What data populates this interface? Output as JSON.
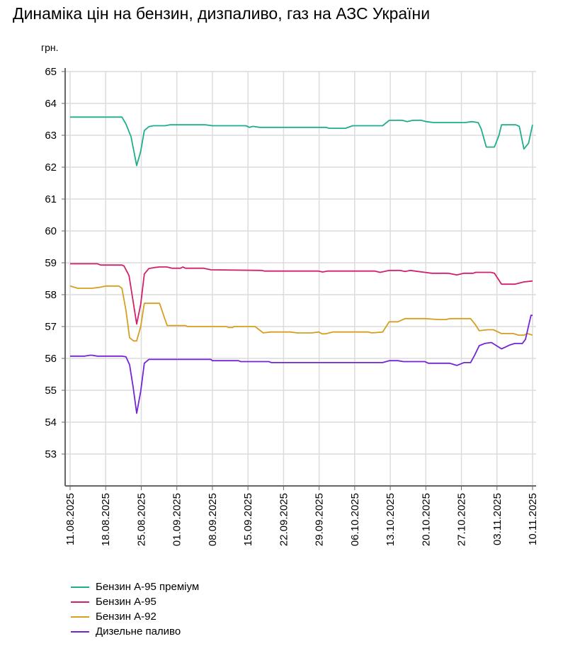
{
  "title": "Динаміка цін на бензин, дизпаливо, газ на АЗС України",
  "chart_data": {
    "type": "line",
    "title": "Динаміка цін на бензин, дизпаливо, газ на АЗС України",
    "ylabel": "грн.",
    "xlabel": "",
    "ylim": [
      52,
      65
    ],
    "yticks": [
      53,
      54,
      55,
      56,
      57,
      58,
      59,
      60,
      61,
      62,
      63,
      64,
      65
    ],
    "x_start_date": "11.08.2025",
    "x_unit": "days since 11.08.2025",
    "xlim": [
      0,
      91
    ],
    "xticks": [
      {
        "d": 0,
        "label": "11.08.2025"
      },
      {
        "d": 7,
        "label": "18.08.2025"
      },
      {
        "d": 14,
        "label": "25.08.2025"
      },
      {
        "d": 21,
        "label": "01.09.2025"
      },
      {
        "d": 28,
        "label": "08.09.2025"
      },
      {
        "d": 35,
        "label": "15.09.2025"
      },
      {
        "d": 42,
        "label": "22.09.2025"
      },
      {
        "d": 49,
        "label": "29.09.2025"
      },
      {
        "d": 56,
        "label": "06.10.2025"
      },
      {
        "d": 63,
        "label": "13.10.2025"
      },
      {
        "d": 70,
        "label": "20.10.2025"
      },
      {
        "d": 77,
        "label": "27.10.2025"
      },
      {
        "d": 84,
        "label": "03.11.2025"
      },
      {
        "d": 91,
        "label": "10.11.2025"
      }
    ],
    "grid": true,
    "legend_position": "bottom-left",
    "series": [
      {
        "name": "Бензин А-95 преміум",
        "color": "#1fae8c",
        "points": [
          [
            0,
            63.57
          ],
          [
            10.2,
            63.57
          ],
          [
            11,
            63.35
          ],
          [
            12,
            62.95
          ],
          [
            13.1,
            62.05
          ],
          [
            13.9,
            62.5
          ],
          [
            14.6,
            63.15
          ],
          [
            15.5,
            63.27
          ],
          [
            16.4,
            63.3
          ],
          [
            18.7,
            63.3
          ],
          [
            19.6,
            63.33
          ],
          [
            26.6,
            63.33
          ],
          [
            28,
            63.3
          ],
          [
            34.6,
            63.3
          ],
          [
            35.3,
            63.25
          ],
          [
            36,
            63.28
          ],
          [
            37.3,
            63.25
          ],
          [
            50.3,
            63.25
          ],
          [
            51,
            63.22
          ],
          [
            54.2,
            63.22
          ],
          [
            55.6,
            63.3
          ],
          [
            61.5,
            63.3
          ],
          [
            62.8,
            63.47
          ],
          [
            65.4,
            63.47
          ],
          [
            66.3,
            63.43
          ],
          [
            67.4,
            63.47
          ],
          [
            69.1,
            63.47
          ],
          [
            70.1,
            63.43
          ],
          [
            71.5,
            63.4
          ],
          [
            77.8,
            63.4
          ],
          [
            79,
            63.43
          ],
          [
            80.3,
            63.4
          ],
          [
            80.9,
            63.2
          ],
          [
            81.9,
            62.63
          ],
          [
            83.5,
            62.63
          ],
          [
            84.4,
            63.0
          ],
          [
            84.9,
            63.33
          ],
          [
            87.7,
            63.33
          ],
          [
            88.4,
            63.28
          ],
          [
            89.3,
            62.57
          ],
          [
            90.2,
            62.75
          ],
          [
            91,
            63.33
          ]
        ]
      },
      {
        "name": "Бензин А-95",
        "color": "#d1206c",
        "points": [
          [
            0,
            58.97
          ],
          [
            5.4,
            58.97
          ],
          [
            6,
            58.93
          ],
          [
            10.2,
            58.93
          ],
          [
            10.6,
            58.9
          ],
          [
            11.6,
            58.6
          ],
          [
            13.1,
            57.08
          ],
          [
            13.9,
            57.7
          ],
          [
            14.6,
            58.65
          ],
          [
            15.5,
            58.82
          ],
          [
            16.6,
            58.85
          ],
          [
            17.6,
            58.87
          ],
          [
            19,
            58.87
          ],
          [
            20.1,
            58.83
          ],
          [
            21.7,
            58.83
          ],
          [
            22.2,
            58.87
          ],
          [
            22.7,
            58.83
          ],
          [
            26.3,
            58.83
          ],
          [
            27.7,
            58.78
          ],
          [
            37.8,
            58.76
          ],
          [
            38.2,
            58.74
          ],
          [
            48.9,
            58.74
          ],
          [
            49.7,
            58.71
          ],
          [
            50.6,
            58.74
          ],
          [
            60,
            58.74
          ],
          [
            61,
            58.7
          ],
          [
            62.8,
            58.76
          ],
          [
            64.9,
            58.76
          ],
          [
            65.9,
            58.73
          ],
          [
            67,
            58.76
          ],
          [
            68.4,
            58.73
          ],
          [
            69.8,
            58.7
          ],
          [
            71.2,
            58.67
          ],
          [
            74.4,
            58.67
          ],
          [
            76.1,
            58.62
          ],
          [
            77.5,
            58.67
          ],
          [
            79.3,
            58.67
          ],
          [
            79.8,
            58.7
          ],
          [
            82.8,
            58.7
          ],
          [
            83.5,
            58.67
          ],
          [
            84.9,
            58.33
          ],
          [
            87.5,
            58.33
          ],
          [
            89.3,
            58.4
          ],
          [
            91,
            58.43
          ]
        ]
      },
      {
        "name": "Бензин А-92",
        "color": "#d4a020",
        "points": [
          [
            0,
            58.27
          ],
          [
            1.5,
            58.2
          ],
          [
            4.3,
            58.2
          ],
          [
            5.7,
            58.23
          ],
          [
            7.1,
            58.27
          ],
          [
            9.6,
            58.27
          ],
          [
            10.2,
            58.2
          ],
          [
            11,
            57.5
          ],
          [
            11.7,
            56.65
          ],
          [
            12.5,
            56.55
          ],
          [
            13.1,
            56.55
          ],
          [
            13.9,
            57.0
          ],
          [
            14.6,
            57.73
          ],
          [
            17.6,
            57.73
          ],
          [
            18.5,
            57.3
          ],
          [
            19.1,
            57.03
          ],
          [
            22.7,
            57.03
          ],
          [
            23.1,
            57.0
          ],
          [
            30.8,
            57.0
          ],
          [
            31.2,
            56.97
          ],
          [
            32,
            56.97
          ],
          [
            32.2,
            57.0
          ],
          [
            36.4,
            57.0
          ],
          [
            38,
            56.8
          ],
          [
            39.4,
            56.83
          ],
          [
            43.3,
            56.83
          ],
          [
            44.7,
            56.8
          ],
          [
            47.5,
            56.8
          ],
          [
            48.9,
            56.83
          ],
          [
            49.6,
            56.77
          ],
          [
            50.3,
            56.77
          ],
          [
            51.7,
            56.83
          ],
          [
            58.7,
            56.83
          ],
          [
            59.4,
            56.8
          ],
          [
            61.5,
            56.83
          ],
          [
            62.8,
            57.15
          ],
          [
            64.5,
            57.15
          ],
          [
            65.9,
            57.25
          ],
          [
            69.8,
            57.25
          ],
          [
            72.6,
            57.22
          ],
          [
            74,
            57.22
          ],
          [
            74.7,
            57.25
          ],
          [
            78.8,
            57.25
          ],
          [
            79.8,
            57.05
          ],
          [
            80.5,
            56.87
          ],
          [
            82.1,
            56.9
          ],
          [
            83.3,
            56.9
          ],
          [
            84.9,
            56.78
          ],
          [
            87.2,
            56.78
          ],
          [
            88.3,
            56.73
          ],
          [
            89.3,
            56.73
          ],
          [
            90,
            56.78
          ],
          [
            91,
            56.73
          ]
        ]
      },
      {
        "name": "Дизельне паливо",
        "color": "#7424d4",
        "points": [
          [
            0,
            56.07
          ],
          [
            2.9,
            56.07
          ],
          [
            3.9,
            56.1
          ],
          [
            4.3,
            56.1
          ],
          [
            5.4,
            56.07
          ],
          [
            10.2,
            56.07
          ],
          [
            11,
            56.05
          ],
          [
            11.7,
            55.8
          ],
          [
            12.4,
            55.1
          ],
          [
            13.1,
            54.28
          ],
          [
            13.9,
            54.97
          ],
          [
            14.6,
            55.85
          ],
          [
            15.5,
            55.97
          ],
          [
            27.7,
            55.97
          ],
          [
            28,
            55.93
          ],
          [
            33.1,
            55.93
          ],
          [
            33.6,
            55.9
          ],
          [
            39.1,
            55.9
          ],
          [
            39.6,
            55.87
          ],
          [
            61.5,
            55.87
          ],
          [
            62.8,
            55.93
          ],
          [
            64.5,
            55.93
          ],
          [
            65.6,
            55.9
          ],
          [
            69.8,
            55.9
          ],
          [
            70.5,
            55.85
          ],
          [
            74.7,
            55.85
          ],
          [
            76.1,
            55.78
          ],
          [
            77.5,
            55.87
          ],
          [
            78.8,
            55.87
          ],
          [
            79.6,
            56.1
          ],
          [
            80.5,
            56.4
          ],
          [
            81.6,
            56.47
          ],
          [
            82.9,
            56.5
          ],
          [
            84.9,
            56.3
          ],
          [
            85.6,
            56.35
          ],
          [
            86.5,
            56.42
          ],
          [
            87.5,
            56.47
          ],
          [
            89,
            56.47
          ],
          [
            89.6,
            56.6
          ],
          [
            90.7,
            57.35
          ],
          [
            91,
            57.35
          ]
        ]
      }
    ]
  }
}
